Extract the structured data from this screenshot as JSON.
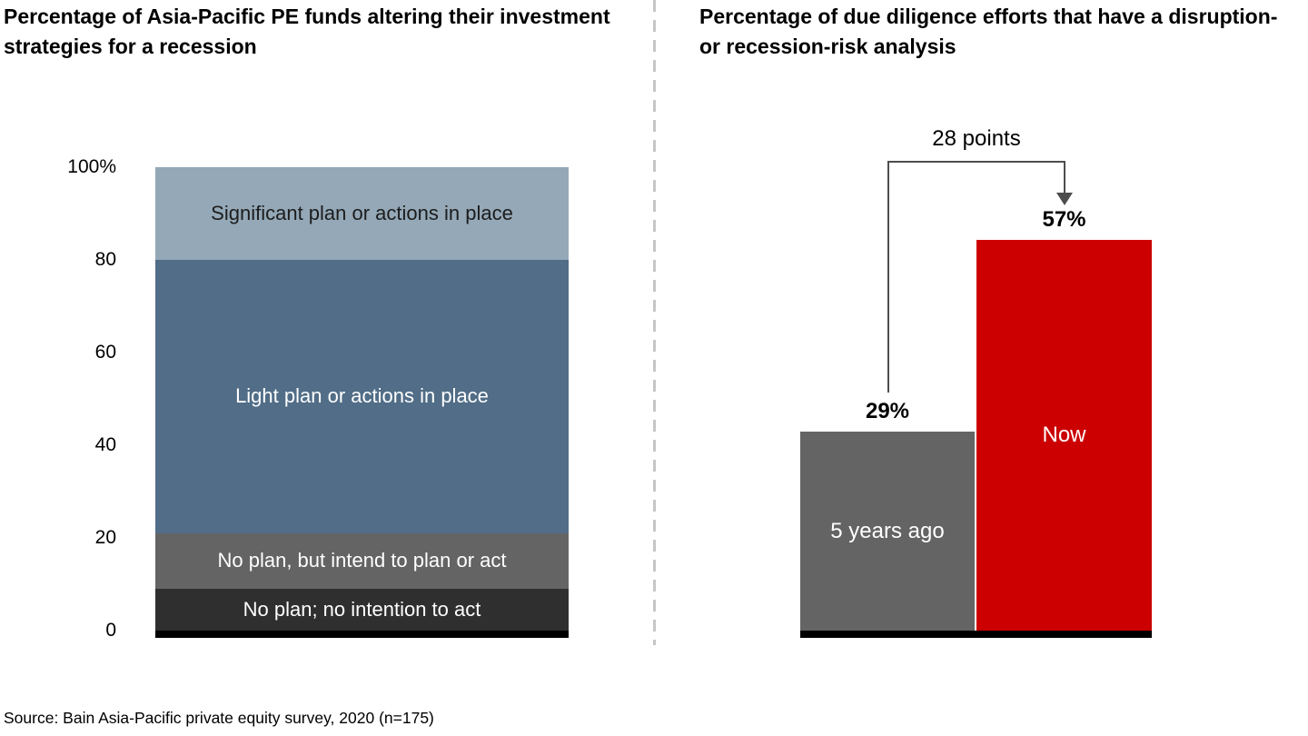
{
  "source_note": "Source: Bain Asia-Pacific private equity survey, 2020 (n=175)",
  "divider": {
    "style": "dashed",
    "color": "#c6c6c6"
  },
  "chart_data": [
    {
      "type": "bar",
      "subtype": "stacked_single_column",
      "title": "Percentage of Asia-Pacific PE funds altering their investment strategies for a recession",
      "xlabel": "",
      "ylabel": "",
      "ylim": [
        0,
        100
      ],
      "grid": false,
      "legend": "labels-inside-segments",
      "ytick_labels": [
        "100%",
        "80",
        "60",
        "40",
        "20",
        "0"
      ],
      "ytick_values": [
        100,
        80,
        60,
        40,
        20,
        0
      ],
      "segments_top_to_bottom": [
        {
          "label": "Significant plan or actions in place",
          "value": 20,
          "color": "#94a8b7",
          "text_color": "#1c1c1c"
        },
        {
          "label": "Light plan or actions in place",
          "value": 59,
          "color": "#516d87",
          "text_color": "#ffffff"
        },
        {
          "label": "No plan, but intend to plan or act",
          "value": 12,
          "color": "#646464",
          "text_color": "#ffffff"
        },
        {
          "label": "No plan; no intention to act",
          "value": 9,
          "color": "#2f2f2f",
          "text_color": "#ffffff"
        }
      ],
      "baseline_color": "#000000"
    },
    {
      "type": "bar",
      "subtype": "column",
      "title": "Percentage of due diligence efforts that have a disruption- or recession-risk analysis",
      "xlabel": "",
      "ylabel": "",
      "grid": false,
      "axis": "none",
      "categories": [
        "5 years ago",
        "Now"
      ],
      "values": [
        29,
        57
      ],
      "value_labels": [
        "29%",
        "57%"
      ],
      "bar_colors": [
        "#646464",
        "#cc0000"
      ],
      "bar_label_color": "#ffffff",
      "annotation": {
        "text": "28 points",
        "delta_points": 28,
        "arrow_color": "#4d4d4d"
      },
      "baseline_color": "#000000"
    }
  ]
}
